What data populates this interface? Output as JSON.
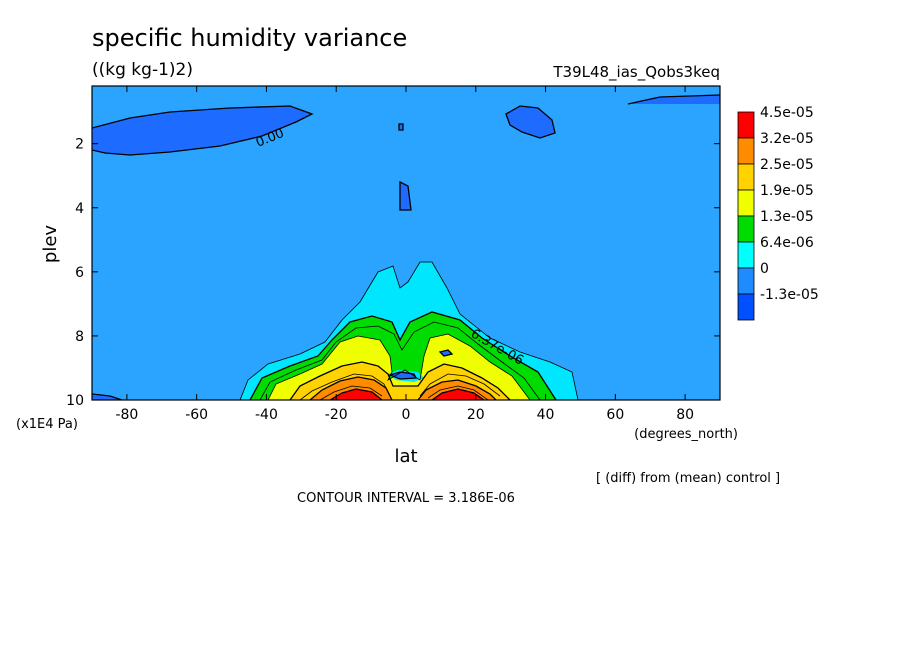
{
  "chart_data": {
    "type": "contour",
    "title": "specific humidity variance",
    "units": "((kg kg-1)2)",
    "run_label": "T39L48_ias_Qobs3keq",
    "xlabel": "lat",
    "xunits": "(degrees_north)",
    "ylabel": "plev",
    "yunits": "(x1E4 Pa)",
    "xlim": [
      -90,
      90
    ],
    "ylim": [
      10,
      0.2
    ],
    "x_ticks": [
      -80,
      -60,
      -40,
      -20,
      0,
      20,
      40,
      60,
      80
    ],
    "x_tick_labels": [
      "-80",
      "-60",
      "-40",
      "-20",
      "0",
      "20",
      "40",
      "60",
      "80"
    ],
    "y_ticks": [
      2,
      4,
      6,
      8,
      10
    ],
    "y_tick_labels": [
      "2",
      "4",
      "6",
      "8",
      "10"
    ],
    "contour_interval_text": "CONTOUR INTERVAL = 3.186E-06",
    "note": "[ (diff) from (mean) control ]",
    "contour_labels": [
      {
        "text": "0.00",
        "lat": -36,
        "plev": 1.7
      },
      {
        "text": "6.37e-06",
        "lat": 28,
        "plev": 8.5
      }
    ],
    "legend": {
      "levels": [
        "4.5e-05",
        "3.2e-05",
        "2.5e-05",
        "1.9e-05",
        "1.3e-05",
        "6.4e-06",
        "0",
        "-1.3e-05"
      ],
      "colors": [
        "#ff0000",
        "#ff8c00",
        "#ffd200",
        "#f0ff00",
        "#00dc00",
        "#00ffff",
        "#1e8cff",
        "#0050ff"
      ]
    },
    "fill_colors": {
      "background": "#2ba4ff",
      "negative": "#1e6cff",
      "band_6e-06": "#00e6ff",
      "band_1.3e-05": "#00dc00",
      "band_1.9e-05": "#f0ff00",
      "band_2.5e-05": "#ffd200",
      "band_3.2e-05": "#ff8c00",
      "band_4.5e-05": "#ff0000"
    }
  }
}
